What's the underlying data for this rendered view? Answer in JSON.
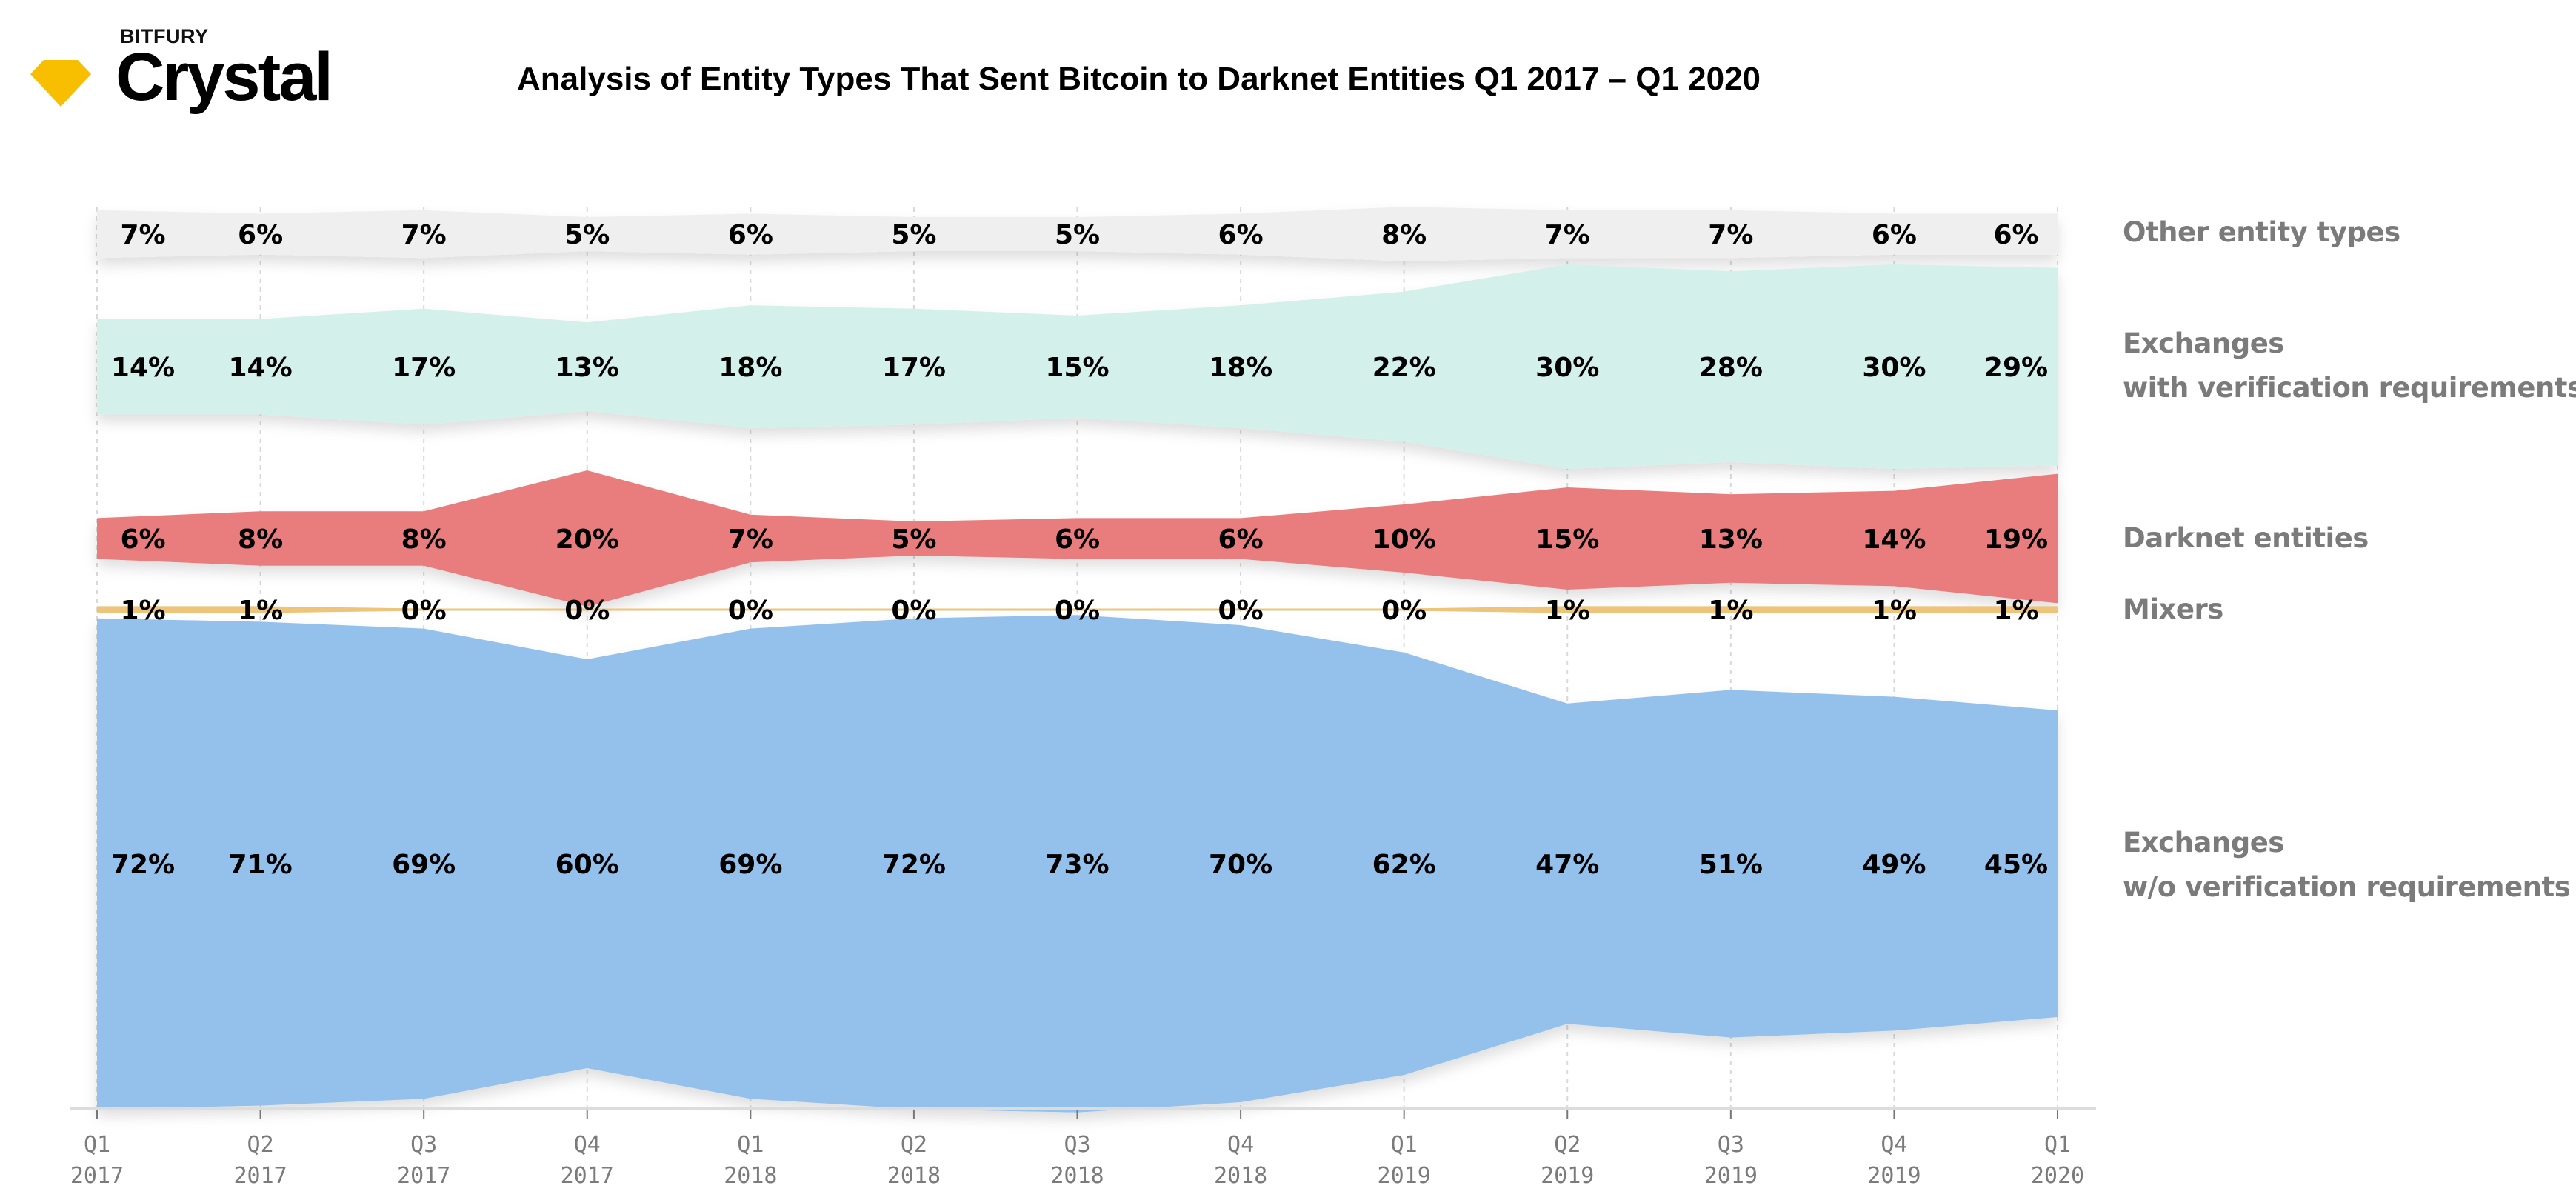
{
  "brand": {
    "company": "BITFURY",
    "product": "Crystal",
    "logo_icon": "yellow-diamond-icon",
    "logo_color": "#F7BF00"
  },
  "chart_data": {
    "type": "area",
    "subtype": "streamgraph (each series band centered on its own baseline, thickness proportional to share)",
    "title": "Analysis of Entity Types That Sent Bitcoin to Darknet Entities Q1 2017 – Q1 2020",
    "xlabel": "",
    "ylabel": "",
    "unit": "%",
    "grid": "vertical dashed lines at each quarter",
    "legend": "right",
    "categories": [
      {
        "quarter": "Q1",
        "year": "2017"
      },
      {
        "quarter": "Q2",
        "year": "2017"
      },
      {
        "quarter": "Q3",
        "year": "2017"
      },
      {
        "quarter": "Q4",
        "year": "2017"
      },
      {
        "quarter": "Q1",
        "year": "2018"
      },
      {
        "quarter": "Q2",
        "year": "2018"
      },
      {
        "quarter": "Q3",
        "year": "2018"
      },
      {
        "quarter": "Q4",
        "year": "2018"
      },
      {
        "quarter": "Q1",
        "year": "2019"
      },
      {
        "quarter": "Q2",
        "year": "2019"
      },
      {
        "quarter": "Q3",
        "year": "2019"
      },
      {
        "quarter": "Q4",
        "year": "2019"
      },
      {
        "quarter": "Q1",
        "year": "2020"
      }
    ],
    "series": [
      {
        "key": "other",
        "name": "Other entity types",
        "name_lines": [
          "Other entity types"
        ],
        "color": "#EFEFEF",
        "values": [
          7,
          6,
          7,
          5,
          6,
          5,
          5,
          6,
          8,
          7,
          7,
          6,
          6
        ]
      },
      {
        "key": "exchanges-verified",
        "name": "Exchanges with verification requirements",
        "name_lines": [
          "Exchanges",
          "with verification requirements"
        ],
        "color": "#D3F0EA",
        "values": [
          14,
          14,
          17,
          13,
          18,
          17,
          15,
          18,
          22,
          30,
          28,
          30,
          29
        ]
      },
      {
        "key": "darknet",
        "name": "Darknet entities",
        "name_lines": [
          "Darknet entities"
        ],
        "color": "#E97C7C",
        "values": [
          6,
          8,
          8,
          20,
          7,
          5,
          6,
          6,
          10,
          15,
          13,
          14,
          19
        ]
      },
      {
        "key": "mixers",
        "name": "Mixers",
        "name_lines": [
          "Mixers"
        ],
        "color": "#EDC47A",
        "values": [
          1,
          1,
          0,
          0,
          0,
          0,
          0,
          0,
          0,
          1,
          1,
          1,
          1
        ]
      },
      {
        "key": "exchanges-unverified",
        "name": "Exchanges w/o verification requirements",
        "name_lines": [
          "Exchanges",
          "w/o verification requirements"
        ],
        "color": "#93C1EC",
        "values": [
          72,
          71,
          69,
          60,
          69,
          72,
          73,
          70,
          62,
          47,
          51,
          49,
          45
        ]
      }
    ],
    "label_suffix": "%",
    "label_color": "#000000",
    "axis_label_color": "#7b7b7b",
    "legend_label_color": "#7b7b7b"
  }
}
